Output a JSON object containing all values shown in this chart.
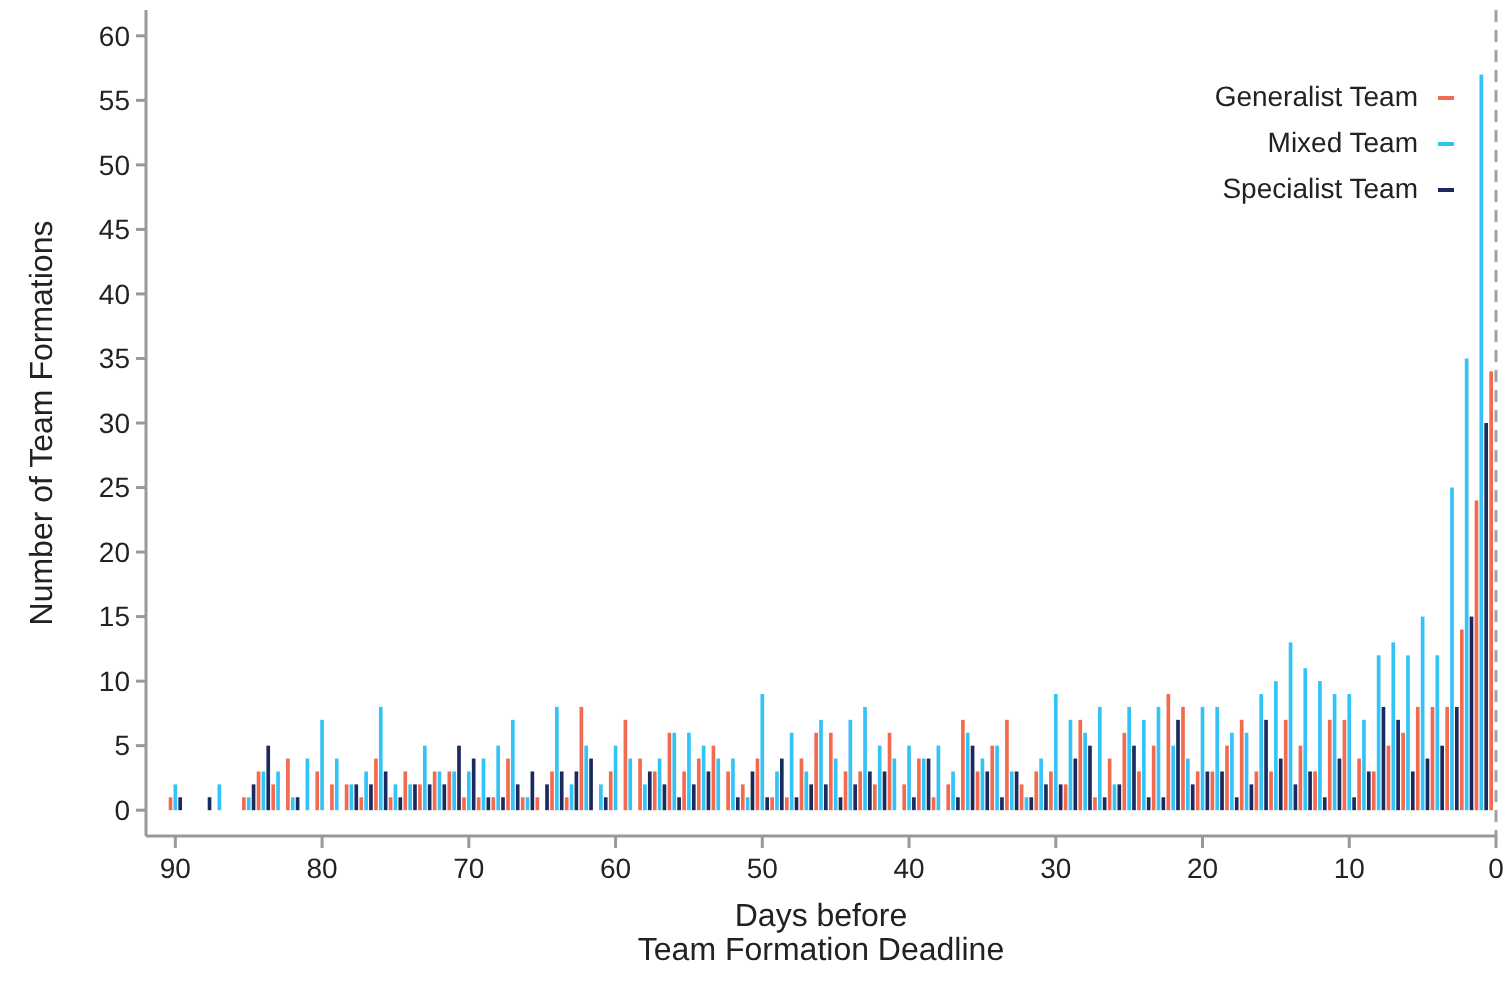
{
  "chart_data": {
    "type": "bar",
    "xlabel": "Days before\nTeam Formation Deadline",
    "ylabel": "Number of Team Formations",
    "x": [
      90,
      89,
      88,
      87,
      86,
      85,
      84,
      83,
      82,
      81,
      80,
      79,
      78,
      77,
      76,
      75,
      74,
      73,
      72,
      71,
      70,
      69,
      68,
      67,
      66,
      65,
      64,
      63,
      62,
      61,
      60,
      59,
      58,
      57,
      56,
      55,
      54,
      53,
      52,
      51,
      50,
      49,
      48,
      47,
      46,
      45,
      44,
      43,
      42,
      41,
      40,
      39,
      38,
      37,
      36,
      35,
      34,
      33,
      32,
      31,
      30,
      29,
      28,
      27,
      26,
      25,
      24,
      23,
      22,
      21,
      20,
      19,
      18,
      17,
      16,
      15,
      14,
      13,
      12,
      11,
      10,
      9,
      8,
      7,
      6,
      5,
      4,
      3,
      2,
      1,
      0
    ],
    "series": [
      {
        "name": "Generalist Team",
        "color": "#f26b50",
        "values": [
          1,
          0,
          0,
          0,
          0,
          1,
          3,
          2,
          4,
          0,
          3,
          2,
          2,
          1,
          4,
          1,
          3,
          2,
          3,
          3,
          1,
          1,
          1,
          4,
          1,
          1,
          3,
          1,
          8,
          0,
          3,
          7,
          4,
          3,
          6,
          3,
          4,
          5,
          3,
          2,
          4,
          1,
          1,
          4,
          6,
          6,
          3,
          3,
          2,
          6,
          2,
          4,
          1,
          2,
          7,
          3,
          5,
          7,
          2,
          3,
          3,
          2,
          7,
          1,
          4,
          6,
          3,
          5,
          9,
          8,
          3,
          3,
          5,
          7,
          3,
          3,
          7,
          5,
          3,
          7,
          7,
          4,
          3,
          5,
          6,
          8,
          8,
          8,
          14,
          24,
          34
        ]
      },
      {
        "name": "Mixed Team",
        "color": "#33c3f7",
        "values": [
          2,
          0,
          0,
          2,
          0,
          1,
          3,
          3,
          1,
          4,
          7,
          4,
          2,
          3,
          8,
          2,
          2,
          5,
          3,
          3,
          3,
          4,
          5,
          7,
          1,
          0,
          8,
          2,
          5,
          2,
          5,
          4,
          2,
          4,
          6,
          6,
          5,
          4,
          4,
          1,
          9,
          3,
          6,
          3,
          7,
          4,
          7,
          8,
          5,
          4,
          5,
          4,
          5,
          3,
          6,
          4,
          5,
          3,
          1,
          4,
          9,
          7,
          6,
          8,
          2,
          8,
          7,
          8,
          5,
          4,
          8,
          8,
          6,
          6,
          9,
          10,
          13,
          11,
          10,
          9,
          9,
          7,
          12,
          13,
          12,
          15,
          12,
          25,
          35,
          57,
          null
        ]
      },
      {
        "name": "Specialist Team",
        "color": "#1b2a5e",
        "values": [
          1,
          0,
          1,
          0,
          0,
          2,
          5,
          0,
          1,
          0,
          0,
          0,
          2,
          2,
          3,
          1,
          2,
          2,
          2,
          5,
          4,
          1,
          1,
          2,
          3,
          2,
          3,
          3,
          4,
          1,
          0,
          0,
          3,
          2,
          1,
          2,
          3,
          0,
          1,
          3,
          1,
          4,
          1,
          2,
          2,
          1,
          2,
          3,
          3,
          0,
          1,
          4,
          0,
          1,
          5,
          3,
          1,
          3,
          1,
          2,
          2,
          4,
          5,
          1,
          2,
          5,
          1,
          1,
          7,
          2,
          3,
          3,
          1,
          2,
          7,
          4,
          2,
          3,
          1,
          4,
          1,
          3,
          8,
          7,
          3,
          4,
          5,
          8,
          15,
          30,
          null
        ]
      }
    ],
    "xlim": [
      92,
      0
    ],
    "xticks": [
      90,
      80,
      70,
      60,
      50,
      40,
      30,
      20,
      10,
      0
    ],
    "ylim": [
      -2,
      62
    ],
    "yticks": [
      0,
      5,
      10,
      15,
      20,
      25,
      30,
      35,
      40,
      45,
      50,
      55,
      60
    ],
    "ref_lines": [
      {
        "axis": "x",
        "value": 0,
        "color": "#a0a0a0",
        "line_style": "dashed"
      }
    ],
    "legend": "top right"
  }
}
